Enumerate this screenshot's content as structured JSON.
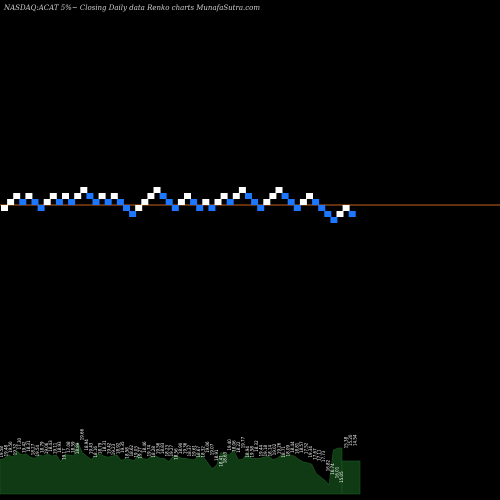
{
  "header": {
    "title": "NASDAQ:ACAT 5%~ Closing Daily data Renko charts MunafaSutra.com"
  },
  "colors": {
    "background": "#000000",
    "up_brick": "#ffffff",
    "down_brick": "#1e78ff",
    "reference_line": "#c8621e",
    "volume_fill": "#0f3a14",
    "volume_edge": "#1c5a22",
    "volume_text": "#ffffff"
  },
  "chart_data": {
    "type": "renko",
    "box_size_pct": 5,
    "bricks": [
      {
        "level": -1,
        "dir": "up"
      },
      {
        "level": 0,
        "dir": "up"
      },
      {
        "level": 1,
        "dir": "up"
      },
      {
        "level": 0,
        "dir": "down"
      },
      {
        "level": 1,
        "dir": "up"
      },
      {
        "level": 0,
        "dir": "down"
      },
      {
        "level": -1,
        "dir": "down"
      },
      {
        "level": 0,
        "dir": "up"
      },
      {
        "level": 1,
        "dir": "up"
      },
      {
        "level": 0,
        "dir": "down"
      },
      {
        "level": 1,
        "dir": "up"
      },
      {
        "level": 0,
        "dir": "down"
      },
      {
        "level": 1,
        "dir": "up"
      },
      {
        "level": 2,
        "dir": "up"
      },
      {
        "level": 1,
        "dir": "down"
      },
      {
        "level": 0,
        "dir": "down"
      },
      {
        "level": 1,
        "dir": "up"
      },
      {
        "level": 0,
        "dir": "down"
      },
      {
        "level": 1,
        "dir": "up"
      },
      {
        "level": 0,
        "dir": "down"
      },
      {
        "level": -1,
        "dir": "down"
      },
      {
        "level": -2,
        "dir": "down"
      },
      {
        "level": -1,
        "dir": "up"
      },
      {
        "level": 0,
        "dir": "up"
      },
      {
        "level": 1,
        "dir": "up"
      },
      {
        "level": 2,
        "dir": "up"
      },
      {
        "level": 1,
        "dir": "down"
      },
      {
        "level": 0,
        "dir": "down"
      },
      {
        "level": -1,
        "dir": "down"
      },
      {
        "level": 0,
        "dir": "up"
      },
      {
        "level": 1,
        "dir": "up"
      },
      {
        "level": 0,
        "dir": "down"
      },
      {
        "level": -1,
        "dir": "down"
      },
      {
        "level": 0,
        "dir": "up"
      },
      {
        "level": -1,
        "dir": "down"
      },
      {
        "level": 0,
        "dir": "up"
      },
      {
        "level": 1,
        "dir": "up"
      },
      {
        "level": 0,
        "dir": "down"
      },
      {
        "level": 1,
        "dir": "up"
      },
      {
        "level": 2,
        "dir": "up"
      },
      {
        "level": 1,
        "dir": "down"
      },
      {
        "level": 0,
        "dir": "down"
      },
      {
        "level": -1,
        "dir": "down"
      },
      {
        "level": 0,
        "dir": "up"
      },
      {
        "level": 1,
        "dir": "up"
      },
      {
        "level": 2,
        "dir": "up"
      },
      {
        "level": 1,
        "dir": "down"
      },
      {
        "level": 0,
        "dir": "down"
      },
      {
        "level": -1,
        "dir": "down"
      },
      {
        "level": 0,
        "dir": "up"
      },
      {
        "level": 1,
        "dir": "up"
      },
      {
        "level": 0,
        "dir": "down"
      },
      {
        "level": -1,
        "dir": "down"
      },
      {
        "level": -2,
        "dir": "down"
      },
      {
        "level": -3,
        "dir": "down"
      },
      {
        "level": -2,
        "dir": "up"
      },
      {
        "level": -1,
        "dir": "up"
      },
      {
        "level": -2,
        "dir": "down"
      }
    ],
    "reference_level": -0.5,
    "volume": {
      "values": [
        30,
        31,
        34,
        32,
        37,
        34,
        35,
        32,
        31,
        34,
        33,
        35,
        33,
        34,
        28,
        34,
        34,
        33,
        45,
        36,
        33,
        30,
        33,
        35,
        33,
        32,
        33,
        34,
        29,
        31,
        30,
        29,
        34,
        31,
        30,
        33,
        33,
        31,
        31,
        28,
        33,
        33,
        31,
        31,
        30,
        30,
        34,
        32,
        27,
        22,
        25,
        36,
        35,
        34,
        38,
        30,
        30,
        35,
        31,
        31,
        31,
        32,
        33,
        30,
        31,
        34,
        33,
        34,
        33,
        30,
        28,
        27,
        26,
        18,
        15,
        12,
        8,
        38,
        40,
        40
      ],
      "labels": [
        "19.58",
        "19.48",
        "19.50",
        "19.32",
        "17.30",
        "19.42",
        "18.31",
        "18.27",
        "19.54",
        "18.79",
        "19.06",
        "18.43",
        "19.11",
        "18.93",
        "19.17",
        "17.08",
        "18.59",
        "18.89",
        "19.66",
        "18.94",
        "19.43",
        "18.16",
        "18.79",
        "18.31",
        "19.42",
        "19.23",
        "18.92",
        "19.35",
        "18.58",
        "18.62",
        "19.03",
        "19.27",
        "18.46",
        "19.74",
        "18.28",
        "19.56",
        "18.83",
        "18.23",
        "19.27",
        "18.56",
        "18.90",
        "19.36",
        "18.37",
        "19.61",
        "18.67",
        "18.32",
        "19.06",
        "19.07",
        "18.91",
        "18.41",
        "18.63",
        "19.40",
        "18.06",
        "18.22",
        "19.77",
        "18.94",
        "19.58",
        "18.32",
        "19.44",
        "19.18",
        "18.14",
        "19.02",
        "19.26",
        "18.71",
        "18.09",
        "18.44",
        "18.81",
        "18.57",
        "17.52",
        "19.34",
        "17.67",
        "17.11",
        "17.73",
        "16.82",
        "16.74",
        "16.01",
        "15.05",
        "15.38",
        "15.20",
        "14.54"
      ]
    }
  }
}
